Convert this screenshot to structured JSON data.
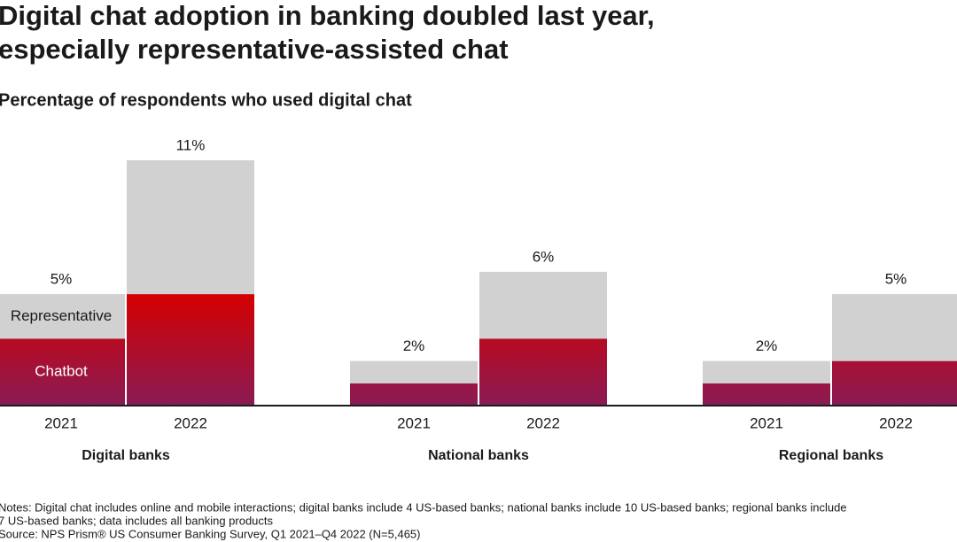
{
  "chart_data": {
    "type": "stacked_bar",
    "title": [
      "Digital chat adoption in banking doubled last year,",
      "especially representative-assisted chat"
    ],
    "subtitle": "Percentage of respondents who used digital chat",
    "categories": [
      "2021",
      "2022",
      "2021",
      "2022",
      "2021",
      "2022"
    ],
    "group_labels": [
      "Digital banks",
      "National banks",
      "Regional banks"
    ],
    "series": [
      {
        "name": "Chatbot",
        "color": "#d40000",
        "values": [
          3,
          5,
          1,
          3,
          1,
          2
        ]
      },
      {
        "name": "Representative",
        "color": "#d1d1d1",
        "values": [
          2,
          6,
          1,
          3,
          1,
          3
        ]
      }
    ],
    "totals": [
      5,
      11,
      2,
      6,
      2,
      5
    ],
    "total_labels": [
      "5%",
      "11%",
      "2%",
      "6%",
      "2%",
      "5%"
    ],
    "ylim": [
      0,
      11
    ],
    "notes": [
      "Notes: Digital chat includes online and mobile interactions; digital banks include 4 US-based banks; national banks include 10 US-based banks; regional banks include",
      "7 US-based banks; data includes all banking products"
    ],
    "source": "Source: NPS Prism® US Consumer Banking Survey, Q1 2021–Q4 2022 (N=5,465)"
  }
}
